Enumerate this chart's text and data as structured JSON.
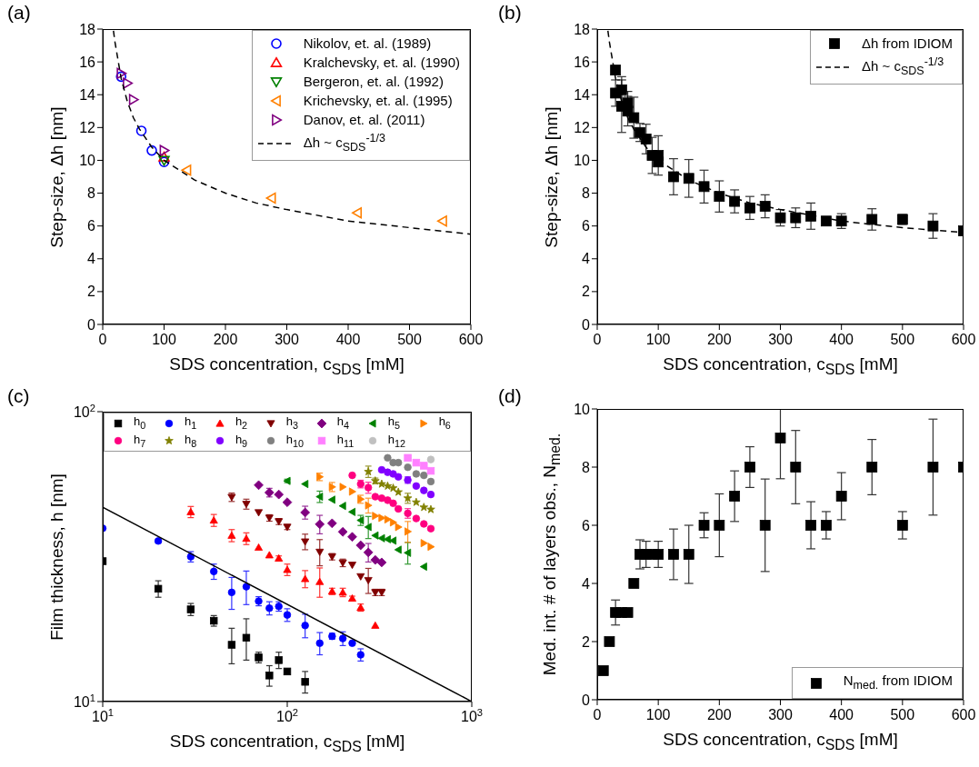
{
  "chart_data": [
    {
      "type": "scatter",
      "title": "(a)",
      "xlabel": "SDS concentration, c$_{SDS}$ [mM]",
      "ylabel": "Step-size, Δh [nm]",
      "xlim": [
        0,
        600
      ],
      "xticks": [
        0,
        100,
        200,
        300,
        400,
        500,
        600
      ],
      "ylim": [
        0,
        18
      ],
      "yticks": [
        0,
        2,
        4,
        6,
        8,
        10,
        12,
        14,
        16,
        18
      ],
      "legend": "top right",
      "series": [
        {
          "name": "Nikolov, et. al. (1989)",
          "color": "#0000ff",
          "marker": "circle-open",
          "x": [
            30,
            63,
            80,
            100
          ],
          "values": [
            15.1,
            11.8,
            10.6,
            9.9
          ]
        },
        {
          "name": "Kralchevsky, et. al. (1990)",
          "color": "#ff0000",
          "marker": "triangle-open",
          "x": [
            100
          ],
          "values": [
            10.2
          ]
        },
        {
          "name": "Bergeron, et. al. (1992)",
          "color": "#008000",
          "marker": "triangle-down-open",
          "x": [
            100
          ],
          "values": [
            10.0
          ]
        },
        {
          "name": "Krichevsky, et. al. (1995)",
          "color": "#ff8000",
          "marker": "triangle-left-open",
          "x": [
            137,
            275,
            415,
            554
          ],
          "values": [
            9.4,
            7.7,
            6.8,
            6.3
          ]
        },
        {
          "name": "Danov, et. al. (2011)",
          "color": "#800080",
          "marker": "triangle-right-open",
          "x": [
            30,
            40,
            50,
            100
          ],
          "values": [
            15.3,
            14.7,
            13.7,
            10.6
          ]
        },
        {
          "type": "line",
          "name": "Δh ~ c$_{SDS}$$^{-1/3}$",
          "color": "#000000",
          "line_style": "dashed",
          "x": [
            17.5,
            20,
            30,
            40,
            50,
            60,
            80,
            100,
            150,
            200,
            250,
            300,
            400,
            500,
            600
          ],
          "values": [
            17.9,
            17.2,
            15.0,
            13.6,
            12.6,
            11.9,
            10.8,
            10.0,
            8.8,
            8.0,
            7.4,
            7.0,
            6.3,
            5.9,
            5.5
          ]
        }
      ]
    },
    {
      "type": "scatter",
      "title": "(b)",
      "xlabel": "SDS concentration, c$_{SDS}$ [mM]",
      "ylabel": "Step-size, Δh [nm]",
      "xlim": [
        0,
        600
      ],
      "xticks": [
        0,
        100,
        200,
        300,
        400,
        500,
        600
      ],
      "ylim": [
        0,
        18
      ],
      "yticks": [
        0,
        2,
        4,
        6,
        8,
        10,
        12,
        14,
        16,
        18
      ],
      "legend": "top right",
      "series": [
        {
          "name": "Δh from IDIOM",
          "color": "#000000",
          "marker": "square",
          "x": [
            30,
            30,
            40,
            40,
            50,
            50,
            60,
            70,
            80,
            90,
            100,
            100,
            125,
            150,
            175,
            200,
            225,
            250,
            275,
            300,
            325,
            350,
            375,
            400,
            450,
            500,
            550,
            600
          ],
          "values": [
            15.5,
            14.1,
            14.3,
            13.3,
            13.5,
            13.0,
            12.6,
            11.7,
            11.3,
            10.3,
            10.3,
            9.9,
            9.0,
            8.9,
            8.4,
            7.8,
            7.5,
            7.1,
            7.2,
            6.5,
            6.5,
            6.6,
            6.3,
            6.3,
            6.4,
            6.4,
            6.0,
            5.7
          ],
          "errors": [
            null,
            0.8,
            0.8,
            1.6,
            0.7,
            0.9,
            1.25,
            0.55,
            0.9,
            1.1,
            1.2,
            null,
            1.1,
            1.15,
            1,
            0.95,
            0.7,
            0.7,
            0.7,
            0.5,
            0.6,
            0.8,
            null,
            0.45,
            0.65,
            0.3,
            0.75,
            null
          ]
        },
        {
          "type": "line",
          "name": "Δh ~ c$_{SDS}$$^{-1/3}$",
          "color": "#000000",
          "line_style": "dashed",
          "x": [
            17.5,
            20,
            30,
            40,
            50,
            60,
            80,
            100,
            150,
            200,
            250,
            300,
            400,
            500,
            600
          ],
          "values": [
            17.9,
            17.2,
            15.0,
            13.6,
            12.6,
            11.9,
            10.8,
            10.0,
            8.8,
            8.0,
            7.4,
            7.0,
            6.3,
            5.9,
            5.6
          ]
        }
      ]
    },
    {
      "type": "scatter",
      "title": "(c)",
      "xlabel": "SDS concentration, c$_{SDS}$ [mM]",
      "ylabel": "Film thickness, h [nm]",
      "log": "xy",
      "xlim": [
        10,
        1000
      ],
      "xticks": [
        {
          "value": 10,
          "label": "10$^{1}$"
        },
        {
          "value": 100,
          "label": "10$^{2}$"
        },
        {
          "value": 1000,
          "label": "10$^{3}$"
        }
      ],
      "ylim": [
        10,
        100
      ],
      "yticks": [
        {
          "value": 10,
          "label": "10$^{1}$"
        },
        {
          "value": 100,
          "label": "10$^{2}$"
        }
      ],
      "legend": "top",
      "series": [
        {
          "name": "h$_{0}$",
          "color": "#000000",
          "marker": "square",
          "x": [
            10,
            20,
            30,
            40,
            50,
            60,
            70,
            80,
            90,
            100,
            125
          ],
          "values": [
            30.5,
            24.5,
            20.8,
            19.0,
            15.7,
            16.6,
            14.2,
            12.3,
            13.9,
            12.7,
            11.7
          ],
          "errors": [
            null,
            1.6,
            1,
            0.8,
            2.2,
            2.7,
            0.6,
            1,
            0.9,
            null,
            1
          ]
        },
        {
          "name": "h$_{1}$",
          "color": "#0000ff",
          "marker": "circle",
          "x": [
            10,
            20,
            30,
            40,
            50,
            60,
            70,
            80,
            90,
            100,
            125,
            150,
            175,
            200,
            225,
            250
          ],
          "values": [
            39.6,
            35.8,
            31.6,
            28.1,
            23.8,
            24.9,
            22.2,
            21.0,
            21.3,
            19.9,
            18.3,
            15.9,
            16.8,
            16.5,
            15.9,
            14.5
          ],
          "errors": [
            null,
            0.5,
            1.3,
            1.7,
            3,
            3.3,
            0.8,
            1.1,
            0.8,
            1,
            1.7,
            1.4,
            0.4,
            0.9,
            null,
            0.7
          ]
        },
        {
          "name": "h$_{2}$",
          "color": "#ff0000",
          "marker": "triangle",
          "x": [
            30,
            40,
            50,
            60,
            70,
            80,
            90,
            100,
            125,
            150,
            175,
            200,
            225,
            250,
            300
          ],
          "values": [
            45.1,
            42.2,
            37.4,
            36.5,
            34.0,
            32.0,
            31.2,
            28.5,
            26.5,
            25.9,
            24.0,
            23.8,
            22.7,
            21.1,
            18.3
          ],
          "errors": [
            2,
            2,
            1.8,
            1.7,
            null,
            null,
            0.6,
            1.3,
            1.8,
            3,
            0.6,
            0.8,
            0.4,
            0.6,
            null
          ]
        },
        {
          "name": "h$_{3}$",
          "color": "#800000",
          "marker": "triangle-down",
          "x": [
            50,
            60,
            70,
            80,
            90,
            100,
            125,
            150,
            175,
            200,
            225,
            250,
            275,
            300,
            325
          ],
          "values": [
            50.7,
            48.0,
            44.9,
            43.0,
            41.8,
            40.0,
            35.6,
            32.8,
            31.6,
            30.1,
            29.6,
            27.0,
            26.2,
            23.8,
            23.8
          ],
          "errors": [
            1.7,
            1.9,
            null,
            1.1,
            1,
            0.8,
            2.2,
            3.4,
            0.8,
            0.9,
            null,
            null,
            2.6,
            0.6,
            0.6
          ]
        },
        {
          "name": "h$_{4}$",
          "color": "#800080",
          "marker": "diamond",
          "x": [
            70,
            80,
            90,
            100,
            125,
            150,
            175,
            200,
            225,
            250,
            275,
            300,
            325
          ],
          "values": [
            55.8,
            52.6,
            51.8,
            48.7,
            44.9,
            40.9,
            41.2,
            38.5,
            37.0,
            34.6,
            32.7,
            30.8,
            30.2
          ],
          "errors": [
            null,
            1.8,
            null,
            null,
            2.3,
            3,
            null,
            null,
            null,
            null,
            2.4,
            null,
            null
          ]
        },
        {
          "name": "h$_{5}$",
          "color": "#008000",
          "marker": "triangle-left",
          "x": [
            100,
            125,
            150,
            175,
            200,
            225,
            250,
            275,
            300,
            325,
            350,
            375,
            400,
            450,
            550
          ],
          "values": [
            57.7,
            56.3,
            50.9,
            49.7,
            47.3,
            45.1,
            42.2,
            40.0,
            37.4,
            36.6,
            36.3,
            35.9,
            33.4,
            32.6,
            29.2
          ],
          "errors": [
            0.8,
            null,
            2.3,
            null,
            null,
            null,
            1.7,
            3.5,
            null,
            null,
            null,
            null,
            null,
            2.8,
            null
          ]
        },
        {
          "name": "h$_{6}$",
          "color": "#ff8000",
          "marker": "triangle-right",
          "x": [
            150,
            175,
            200,
            225,
            250,
            275,
            300,
            325,
            350,
            375,
            400,
            450,
            550,
            600
          ],
          "values": [
            59.6,
            55.0,
            55.0,
            53.0,
            49.9,
            47.5,
            43.7,
            43.0,
            42.5,
            41.5,
            40.0,
            38.6,
            35.2,
            34.2
          ],
          "errors": [
            1.8,
            2,
            null,
            null,
            1.6,
            2.8,
            null,
            null,
            null,
            null,
            null,
            3.2,
            null,
            null
          ]
        },
        {
          "name": "h$_{7}$",
          "color": "#ff0080",
          "marker": "circle",
          "x": [
            225,
            250,
            275,
            300,
            325,
            350,
            375,
            400,
            450,
            500,
            550,
            600
          ],
          "values": [
            60.3,
            56.3,
            54.7,
            50.9,
            50.3,
            49.5,
            48.3,
            46.2,
            44.6,
            42.8,
            41.0,
            39.5
          ],
          "errors": [
            null,
            1.7,
            2.4,
            null,
            null,
            null,
            null,
            null,
            1.7,
            null,
            null,
            null
          ]
        },
        {
          "name": "h$_{8}$",
          "color": "#808000",
          "marker": "star",
          "x": [
            275,
            300,
            325,
            350,
            375,
            400,
            450,
            500,
            550,
            600
          ],
          "values": [
            62.1,
            57.7,
            56.3,
            55.4,
            54.5,
            52.8,
            50.3,
            48.7,
            46.8,
            46.0
          ],
          "errors": [
            2.8,
            1.3,
            null,
            null,
            null,
            null,
            2,
            null,
            null,
            null
          ]
        },
        {
          "name": "h$_{9}$",
          "color": "#8000ff",
          "marker": "circle",
          "x": [
            325,
            350,
            375,
            400,
            450,
            500,
            550,
            600
          ],
          "values": [
            63.0,
            61.8,
            61.0,
            59.6,
            58.1,
            55.4,
            53.5,
            51.8
          ],
          "errors": [
            null,
            null,
            null,
            null,
            1.5,
            null,
            null,
            null
          ]
        },
        {
          "name": "h$_{10}$",
          "color": "#808080",
          "marker": "circle",
          "x": [
            350,
            375,
            400,
            450,
            500,
            550,
            600
          ],
          "values": [
            69.3,
            66.7,
            66.7,
            64.3,
            61.0,
            60.3,
            57.4
          ]
        },
        {
          "name": "h$_{11}$",
          "color": "#ff80ff",
          "marker": "square",
          "x": [
            450,
            500,
            550,
            600
          ],
          "values": [
            69.3,
            66.7,
            65.1,
            62.5
          ]
        },
        {
          "name": "h$_{12}$",
          "color": "#c0c0c0",
          "marker": "circle",
          "x": [
            600
          ],
          "values": [
            68.4
          ]
        },
        {
          "type": "line",
          "color": "#000000",
          "line_style": "solid",
          "x": [
            10,
            1000
          ],
          "values": [
            46.8,
            10
          ]
        }
      ]
    },
    {
      "type": "scatter",
      "title": "(d)",
      "xlabel": "SDS concentration, c$_{SDS}$ [mM]",
      "ylabel": "Med. int. # of layers obs., N$_{med.}$",
      "xlim": [
        0,
        600
      ],
      "xticks": [
        0,
        100,
        200,
        300,
        400,
        500,
        600
      ],
      "ylim": [
        0,
        10
      ],
      "yticks": [
        0,
        2,
        4,
        6,
        8,
        10
      ],
      "legend": "bottom right",
      "series": [
        {
          "name": "N$_{med.}$ from IDIOM",
          "color": "#000000",
          "marker": "square",
          "x": [
            10,
            20,
            30,
            40,
            50,
            60,
            70,
            80,
            90,
            100,
            125,
            150,
            175,
            200,
            225,
            250,
            275,
            300,
            325,
            350,
            375,
            400,
            450,
            500,
            550,
            600
          ],
          "values": [
            1,
            2,
            3,
            3,
            3,
            4,
            5,
            5,
            5,
            5,
            5,
            5,
            6,
            6,
            7,
            8,
            6,
            9,
            8,
            6,
            6,
            7,
            8,
            6,
            8,
            8
          ],
          "errors": [
            null,
            null,
            0.43,
            null,
            null,
            null,
            0.5,
            0.45,
            null,
            0.45,
            0.87,
            1,
            0.43,
            1.08,
            0.87,
            0.7,
            1.59,
            [
              7.6,
              10
            ],
            1.26,
            0.81,
            0.47,
            0.81,
            0.95,
            0.47,
            1.65,
            null
          ]
        }
      ]
    }
  ]
}
